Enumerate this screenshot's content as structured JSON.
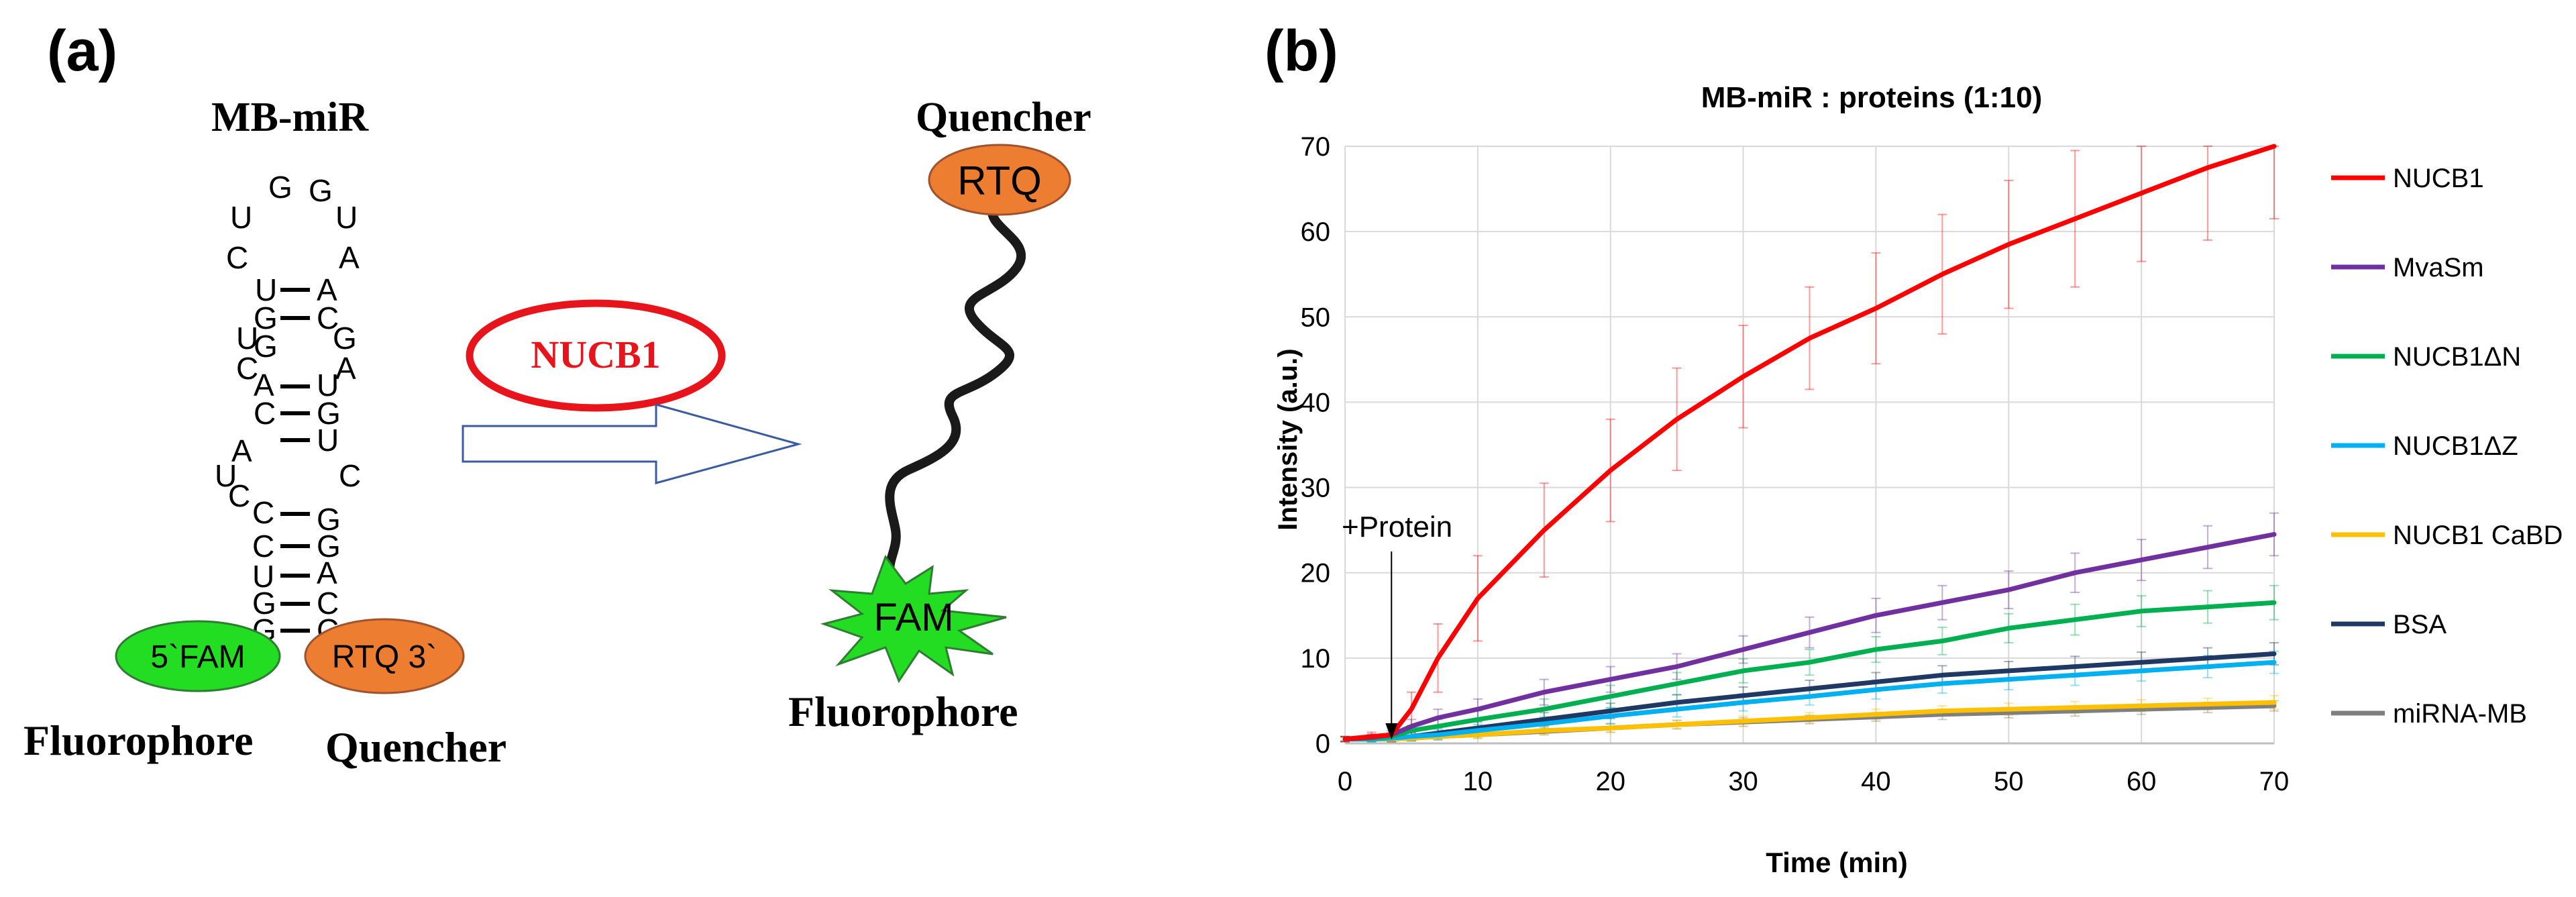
{
  "panel_a": {
    "label": "(a)",
    "title": "MB-miR",
    "left_fluorophore_caption": "Fluorophore",
    "left_quencher_caption": "Quencher",
    "fam_5_label": "5`FAM",
    "rtq_3_label": "RTQ 3`",
    "enzyme_label": "NUCB1",
    "right_quencher_caption": "Quencher",
    "right_fluorophore_caption": "Fluorophore",
    "rtq_label": "RTQ",
    "fam_label": "FAM",
    "loop_letters": [
      "U",
      "G",
      "G",
      "U",
      "C",
      "A"
    ],
    "stem_left": [
      "U",
      "G",
      "U",
      "G",
      "C",
      "A",
      "C",
      "A",
      "U",
      "C",
      "C",
      "C",
      "U",
      "G",
      "G"
    ],
    "stem_right": [
      "A",
      "C",
      "G",
      "A",
      "U",
      "G",
      "U",
      "C",
      "G",
      "G",
      "A",
      "C",
      "C"
    ],
    "colors": {
      "fam_green": "#22dd22",
      "rtq_orange": "#ed7d31",
      "nucb1_red": "#e8141b",
      "arrow_blue": "#3a5ba0"
    }
  },
  "panel_b": {
    "label": "(b)",
    "annotation": "+Protein",
    "chart_data": {
      "type": "line",
      "title": "MB-miR : proteins (1:10)",
      "xlabel": "Time (min)",
      "ylabel": "Intensity (a.u.)",
      "xlim": [
        0,
        70
      ],
      "ylim": [
        0,
        70
      ],
      "xticks": [
        "0",
        "10",
        "20",
        "30",
        "40",
        "50",
        "60",
        "70"
      ],
      "yticks": [
        "0",
        "10",
        "20",
        "30",
        "40",
        "50",
        "60",
        "70"
      ],
      "grid": true,
      "legend": "right",
      "annotation_time": 3.5,
      "x": [
        0,
        2,
        3.5,
        5,
        7,
        10,
        15,
        20,
        25,
        30,
        35,
        40,
        45,
        50,
        55,
        60,
        65,
        70
      ],
      "series": [
        {
          "name": "NUCB1",
          "color": "#ff0000",
          "values": [
            0.5,
            0.8,
            1.0,
            4.0,
            10.0,
            17.0,
            25.0,
            32.0,
            38.0,
            43.0,
            47.5,
            51.0,
            55.0,
            58.5,
            61.5,
            64.5,
            67.5,
            70.0
          ],
          "error": [
            0.3,
            0.5,
            0.8,
            2.0,
            4.0,
            5.0,
            5.5,
            6.0,
            6.0,
            6.0,
            6.0,
            6.5,
            7.0,
            7.5,
            8.0,
            8.0,
            8.5,
            8.5
          ]
        },
        {
          "name": "MvaSm",
          "color": "#7030a0",
          "values": [
            0.5,
            0.7,
            1.0,
            2.0,
            3.0,
            4.0,
            6.0,
            7.5,
            9.0,
            11.0,
            13.0,
            15.0,
            16.5,
            18.0,
            20.0,
            21.5,
            23.0,
            24.5
          ],
          "error": [
            0.3,
            0.4,
            0.5,
            0.8,
            1.0,
            1.2,
            1.5,
            1.5,
            1.5,
            1.6,
            1.8,
            2.0,
            2.0,
            2.2,
            2.3,
            2.4,
            2.5,
            2.5
          ]
        },
        {
          "name": "NUCB1ΔN",
          "color": "#00b050",
          "values": [
            0.5,
            0.6,
            0.8,
            1.5,
            2.0,
            2.8,
            4.0,
            5.5,
            7.0,
            8.5,
            9.5,
            11.0,
            12.0,
            13.5,
            14.5,
            15.5,
            16.0,
            16.5
          ],
          "error": [
            0.3,
            0.4,
            0.5,
            0.6,
            0.8,
            1.0,
            1.2,
            1.3,
            1.3,
            1.4,
            1.5,
            1.5,
            1.6,
            1.7,
            1.8,
            1.8,
            1.9,
            2.0
          ]
        },
        {
          "name": "NUCB1ΔZ",
          "color": "#00b0f0",
          "values": [
            0.5,
            0.5,
            0.6,
            0.8,
            1.0,
            1.5,
            2.3,
            3.2,
            4.0,
            4.8,
            5.5,
            6.3,
            7.0,
            7.5,
            8.0,
            8.5,
            9.0,
            9.5
          ],
          "error": [
            0.3,
            0.3,
            0.4,
            0.5,
            0.6,
            0.7,
            0.8,
            0.9,
            0.9,
            1.0,
            1.0,
            1.1,
            1.1,
            1.2,
            1.2,
            1.2,
            1.3,
            1.3
          ]
        },
        {
          "name": "NUCB1 CaBD",
          "color": "#ffc000",
          "values": [
            0.5,
            0.5,
            0.5,
            0.6,
            0.8,
            1.0,
            1.5,
            1.8,
            2.2,
            2.6,
            3.0,
            3.4,
            3.8,
            4.0,
            4.2,
            4.4,
            4.6,
            4.8
          ],
          "error": [
            0.2,
            0.2,
            0.3,
            0.3,
            0.4,
            0.4,
            0.5,
            0.5,
            0.5,
            0.6,
            0.6,
            0.6,
            0.6,
            0.7,
            0.7,
            0.7,
            0.7,
            0.8
          ]
        },
        {
          "name": "BSA",
          "color": "#1f3864",
          "values": [
            0.5,
            0.5,
            0.6,
            0.8,
            1.2,
            1.8,
            2.8,
            3.8,
            4.8,
            5.6,
            6.4,
            7.2,
            8.0,
            8.5,
            9.0,
            9.5,
            10.0,
            10.5
          ],
          "error": [
            0.3,
            0.3,
            0.4,
            0.5,
            0.6,
            0.7,
            0.8,
            0.9,
            0.9,
            1.0,
            1.0,
            1.1,
            1.1,
            1.1,
            1.2,
            1.2,
            1.2,
            1.3
          ]
        },
        {
          "name": "miRNA-MB",
          "color": "#7f7f7f",
          "values": [
            0.5,
            0.5,
            0.5,
            0.6,
            0.8,
            1.0,
            1.4,
            1.8,
            2.2,
            2.5,
            2.8,
            3.1,
            3.4,
            3.6,
            3.8,
            4.0,
            4.2,
            4.4
          ],
          "error": [
            0.2,
            0.2,
            0.2,
            0.3,
            0.3,
            0.4,
            0.4,
            0.5,
            0.5,
            0.5,
            0.5,
            0.5,
            0.6,
            0.6,
            0.6,
            0.6,
            0.6,
            0.6
          ]
        }
      ]
    }
  }
}
